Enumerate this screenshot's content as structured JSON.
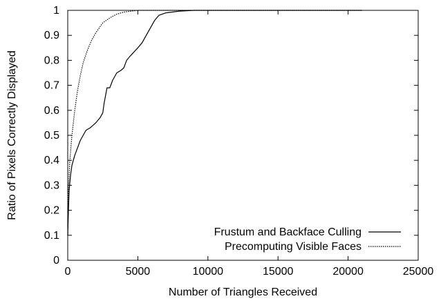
{
  "chart_data": {
    "type": "line",
    "xlabel": "Number of Triangles Received",
    "ylabel": "Ratio of Pixels Correctly Displayed",
    "xlim": [
      0,
      25000
    ],
    "ylim": [
      0,
      1
    ],
    "x_ticks": [
      "0",
      "5000",
      "10000",
      "15000",
      "20000",
      "25000"
    ],
    "y_ticks": [
      "0",
      "0.1",
      "0.2",
      "0.3",
      "0.4",
      "0.5",
      "0.6",
      "0.7",
      "0.8",
      "0.9",
      "1"
    ],
    "grid": false,
    "legend_position": "bottom-right",
    "series": [
      {
        "name": "Frustum and Backface Culling",
        "style": "solid",
        "color": "#000000",
        "points": [
          [
            0,
            0.1
          ],
          [
            50,
            0.2
          ],
          [
            100,
            0.28
          ],
          [
            200,
            0.34
          ],
          [
            300,
            0.38
          ],
          [
            400,
            0.4
          ],
          [
            500,
            0.42
          ],
          [
            700,
            0.45
          ],
          [
            900,
            0.48
          ],
          [
            1100,
            0.5
          ],
          [
            1300,
            0.52
          ],
          [
            1600,
            0.53
          ],
          [
            2000,
            0.55
          ],
          [
            2300,
            0.57
          ],
          [
            2500,
            0.59
          ],
          [
            2600,
            0.63
          ],
          [
            2700,
            0.66
          ],
          [
            2800,
            0.69
          ],
          [
            3000,
            0.69
          ],
          [
            3200,
            0.72
          ],
          [
            3500,
            0.75
          ],
          [
            3800,
            0.76
          ],
          [
            4000,
            0.77
          ],
          [
            4200,
            0.8
          ],
          [
            4500,
            0.82
          ],
          [
            5000,
            0.85
          ],
          [
            5300,
            0.87
          ],
          [
            5600,
            0.9
          ],
          [
            5900,
            0.93
          ],
          [
            6200,
            0.96
          ],
          [
            6500,
            0.98
          ],
          [
            7000,
            0.99
          ],
          [
            8000,
            0.997
          ],
          [
            9000,
            1.0
          ],
          [
            21000,
            1.0
          ]
        ]
      },
      {
        "name": "Precomputing Visible Faces",
        "style": "dotted",
        "color": "#000000",
        "points": [
          [
            0,
            0.1
          ],
          [
            50,
            0.28
          ],
          [
            150,
            0.4
          ],
          [
            300,
            0.5
          ],
          [
            500,
            0.6
          ],
          [
            700,
            0.68
          ],
          [
            900,
            0.74
          ],
          [
            1100,
            0.79
          ],
          [
            1400,
            0.84
          ],
          [
            1700,
            0.88
          ],
          [
            2000,
            0.91
          ],
          [
            2500,
            0.95
          ],
          [
            3000,
            0.97
          ],
          [
            3500,
            0.985
          ],
          [
            4000,
            0.993
          ],
          [
            5000,
            1.0
          ],
          [
            21000,
            1.0
          ]
        ]
      }
    ]
  }
}
